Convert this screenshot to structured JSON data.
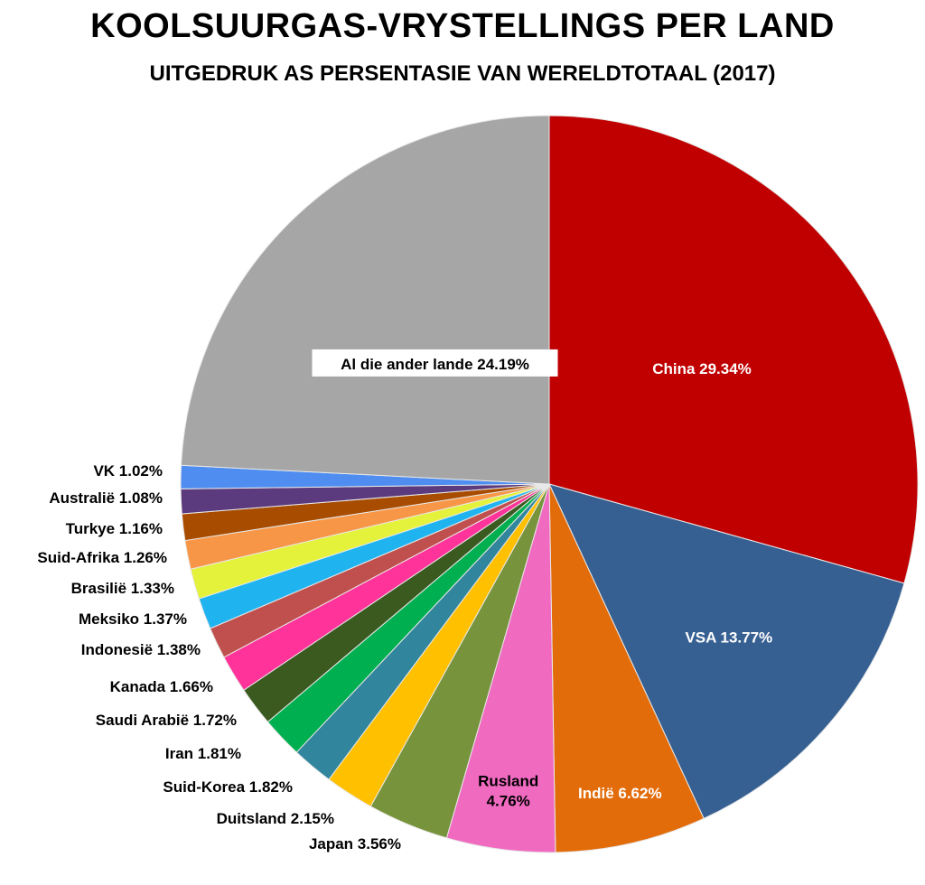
{
  "title": "KOOLSUURGAS-VRYSTELLINGS PER LAND",
  "subtitle": "UITGEDRUK AS  PERSENTASIE VAN WERELDTOTAAL (2017)",
  "chart_data": {
    "type": "pie",
    "title": "KOOLSUURGAS-VRYSTELLINGS PER LAND",
    "subtitle": "UITGEDRUK AS  PERSENTASIE VAN WERELDTOTAAL (2017)",
    "unit": "%",
    "slices": [
      {
        "name": "China",
        "value": 29.34,
        "label": "China 29.34%",
        "color": "#c00000"
      },
      {
        "name": "VSA",
        "value": 13.77,
        "label": "VSA 13.77%",
        "color": "#376092"
      },
      {
        "name": "Indië",
        "value": 6.62,
        "label": "Indië 6.62%",
        "color": "#e36c0a"
      },
      {
        "name": "Rusland",
        "value": 4.76,
        "label": "Rusland 4.76%",
        "label_lines": [
          "Rusland",
          "4.76%"
        ],
        "color": "#f06ac0"
      },
      {
        "name": "Japan",
        "value": 3.56,
        "label": "Japan 3.56%",
        "color": "#77933c"
      },
      {
        "name": "Duitsland",
        "value": 2.15,
        "label": "Duitsland 2.15%",
        "color": "#ffc000"
      },
      {
        "name": "Suid-Korea",
        "value": 1.82,
        "label": "Suid-Korea 1.82%",
        "color": "#31859c"
      },
      {
        "name": "Iran",
        "value": 1.81,
        "label": "Iran 1.81%",
        "color": "#00b050"
      },
      {
        "name": "Saudi Arabië",
        "value": 1.72,
        "label": "Saudi Arabië 1.72%",
        "color": "#3a5a20"
      },
      {
        "name": "Kanada",
        "value": 1.66,
        "label": "Kanada 1.66%",
        "color": "#ff3399"
      },
      {
        "name": "Indonesië",
        "value": 1.38,
        "label": "Indonesië 1.38%",
        "color": "#c0504d"
      },
      {
        "name": "Meksiko",
        "value": 1.37,
        "label": "Meksiko 1.37%",
        "color": "#1fb4f0"
      },
      {
        "name": "Brasilië",
        "value": 1.33,
        "label": "Brasilië 1.33%",
        "color": "#e4f23c"
      },
      {
        "name": "Suid-Afrika",
        "value": 1.26,
        "label": "Suid-Afrika 1.26%",
        "color": "#f79646"
      },
      {
        "name": "Turkye",
        "value": 1.16,
        "label": "Turkye 1.16%",
        "color": "#a84c00"
      },
      {
        "name": "Australië",
        "value": 1.08,
        "label": "Australië 1.08%",
        "color": "#5c3a7e"
      },
      {
        "name": "VK",
        "value": 1.02,
        "label": "VK 1.02%",
        "color": "#4f8ef0"
      },
      {
        "name": "Al die ander lande",
        "value": 24.19,
        "label": "Al die ander lande 24.19%",
        "color": "#a6a6a6"
      }
    ]
  }
}
